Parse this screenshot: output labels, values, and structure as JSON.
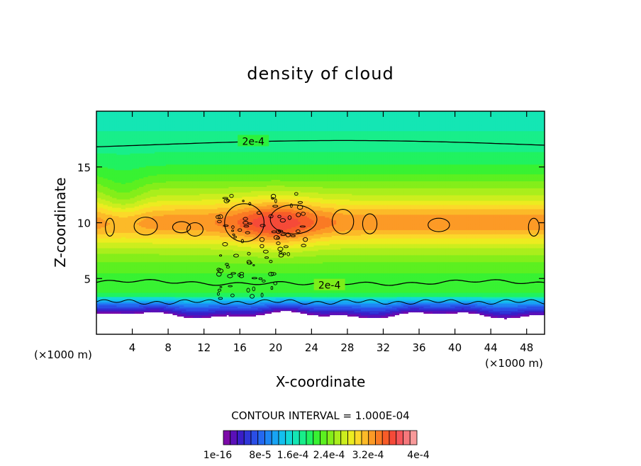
{
  "chart_data": {
    "type": "heatmap",
    "title": "density of cloud",
    "xlabel": "X-coordinate",
    "ylabel": "Z-coordinate",
    "x_unit": "(×1000 m)",
    "y_unit": "(×1000 m)",
    "xlim": [
      0,
      50
    ],
    "ylim": [
      0,
      20
    ],
    "x_ticks": [
      4,
      8,
      12,
      16,
      20,
      24,
      28,
      32,
      36,
      40,
      44,
      48
    ],
    "y_ticks": [
      5,
      10,
      15
    ],
    "contour_interval_text": "CONTOUR INTERVAL = 1.000E-04",
    "contour_labels": [
      {
        "text": "2e-4",
        "x": 17.5,
        "z": 17.3
      },
      {
        "text": "2e-4",
        "x": 26.0,
        "z": 4.4
      }
    ],
    "colorbar": {
      "colors": [
        "#7c0aa8",
        "#5a10b8",
        "#3a1ec8",
        "#2f36d8",
        "#2a4ee6",
        "#2468f0",
        "#1e86f4",
        "#18a4f4",
        "#14c0ee",
        "#12d8d8",
        "#14e6b4",
        "#18ee8a",
        "#20f260",
        "#38f232",
        "#5cf020",
        "#84ee1a",
        "#aaee1c",
        "#ccee1e",
        "#ecec20",
        "#fcd82a",
        "#fcba28",
        "#fc9a26",
        "#fa7a24",
        "#f85c28",
        "#f64a38",
        "#f6565a",
        "#f6787c",
        "#f89a9a"
      ],
      "labels": [
        "1e-16",
        "8e-5",
        "1.6e-4",
        "2.4e-4",
        "3.2e-4",
        "4e-4"
      ]
    }
  }
}
